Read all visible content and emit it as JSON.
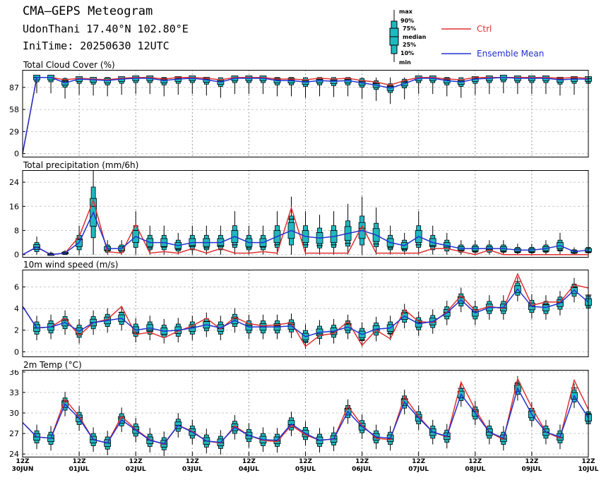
{
  "header": {
    "title": "CMA—GEPS Meteogram",
    "station": "UdonThani 17.40°N 102.80°E",
    "init_time": "IniTime: 20250630 12UTC"
  },
  "legend": {
    "box_labels": [
      "max",
      "90%",
      "75%",
      "median",
      "25%",
      "10%",
      "min"
    ],
    "ctrl": "Ctrl",
    "mean": "Ensemble Mean",
    "ctrl_color": "#e03030",
    "mean_color": "#2030d0",
    "box_color": "#20b8c0"
  },
  "x_axis": {
    "ticks": [
      {
        "t": 0,
        "hour": "12Z",
        "date": "30JUN"
      },
      {
        "t": 4,
        "hour": "12Z",
        "date": "01JUL"
      },
      {
        "t": 8,
        "hour": "12Z",
        "date": "02JUL"
      },
      {
        "t": 12,
        "hour": "12Z",
        "date": "03JUL"
      },
      {
        "t": 16,
        "hour": "12Z",
        "date": "04JUL"
      },
      {
        "t": 20,
        "hour": "12Z",
        "date": "05JUL"
      },
      {
        "t": 24,
        "hour": "12Z",
        "date": "06JUL"
      },
      {
        "t": 28,
        "hour": "12Z",
        "date": "07JUL"
      },
      {
        "t": 32,
        "hour": "12Z",
        "date": "08JUL"
      },
      {
        "t": 36,
        "hour": "12Z",
        "date": "09JUL"
      },
      {
        "t": 40,
        "hour": "12Z",
        "date": "10JUL"
      }
    ],
    "range": [
      0,
      40
    ]
  },
  "chart_data": [
    {
      "type": "box",
      "title": "Total Cloud Cover (%)",
      "ylim": [
        -5,
        110
      ],
      "yticks": [
        0,
        29,
        58,
        87
      ],
      "x": [
        0,
        1,
        2,
        3,
        4,
        5,
        6,
        7,
        8,
        9,
        10,
        11,
        12,
        13,
        14,
        15,
        16,
        17,
        18,
        19,
        20,
        21,
        22,
        23,
        24,
        25,
        26,
        27,
        28,
        29,
        30,
        31,
        32,
        33,
        34,
        35,
        36,
        37,
        38,
        39,
        40
      ],
      "ctrl": [
        0,
        100,
        100,
        97,
        99,
        98,
        97,
        99,
        100,
        100,
        98,
        100,
        100,
        99,
        97,
        100,
        100,
        100,
        98,
        98,
        97,
        99,
        98,
        99,
        96,
        94,
        90,
        96,
        100,
        100,
        98,
        97,
        100,
        100,
        100,
        100,
        100,
        100,
        99,
        100,
        99
      ],
      "mean": [
        0,
        100,
        100,
        93,
        98,
        97,
        96,
        98,
        99,
        99,
        96,
        98,
        99,
        97,
        94,
        99,
        99,
        99,
        96,
        96,
        94,
        96,
        95,
        96,
        93,
        90,
        86,
        92,
        99,
        99,
        96,
        94,
        98,
        99,
        100,
        99,
        99,
        99,
        97,
        98,
        98
      ]
    },
    {
      "type": "box",
      "title": "Total precipitation (mm/6h)",
      "ylim": [
        -1,
        28
      ],
      "yticks": [
        0,
        8,
        16,
        24
      ],
      "x": [
        0,
        1,
        2,
        3,
        4,
        5,
        6,
        7,
        8,
        9,
        10,
        11,
        12,
        13,
        14,
        15,
        16,
        17,
        18,
        19,
        20,
        21,
        22,
        23,
        24,
        25,
        26,
        27,
        28,
        29,
        30,
        31,
        32,
        33,
        34,
        35,
        36,
        37,
        38,
        39,
        40
      ],
      "ctrl": [
        0,
        2.5,
        0,
        0.5,
        6,
        18,
        1,
        0.5,
        10,
        0.5,
        1,
        0.5,
        2,
        0.5,
        2,
        0.5,
        0.5,
        1,
        0.5,
        15.5,
        0.5,
        0.5,
        0.5,
        0.5,
        9.5,
        0.5,
        0.5,
        0.5,
        0.5,
        2,
        2,
        1,
        0,
        1.5,
        0,
        0,
        0,
        0,
        0,
        0,
        0
      ],
      "mean": [
        0,
        2.5,
        0,
        0.5,
        4,
        14,
        2,
        2,
        6,
        4,
        4,
        3,
        4,
        4,
        4,
        6,
        4,
        4,
        6,
        8,
        6,
        5.5,
        6,
        7,
        8,
        6.5,
        4,
        3,
        6,
        4,
        3,
        2,
        2,
        2,
        2,
        1.5,
        1.5,
        2,
        3,
        1,
        1.5
      ]
    },
    {
      "type": "box",
      "title": "10m wind speed (m/s)",
      "ylim": [
        -0.5,
        7.6
      ],
      "yticks": [
        0,
        2,
        4,
        6
      ],
      "x": [
        0,
        1,
        2,
        3,
        4,
        5,
        6,
        7,
        8,
        9,
        10,
        11,
        12,
        13,
        14,
        15,
        16,
        17,
        18,
        19,
        20,
        21,
        22,
        23,
        24,
        25,
        26,
        27,
        28,
        29,
        30,
        31,
        32,
        33,
        34,
        35,
        36,
        37,
        38,
        39,
        40
      ],
      "ctrl": [
        4.2,
        2.2,
        2.3,
        3.1,
        1.5,
        2.7,
        3.0,
        4.2,
        1.6,
        1.8,
        1.3,
        1.9,
        2.4,
        3.1,
        2.1,
        3.2,
        2.6,
        2.4,
        2.5,
        2.7,
        0.5,
        1.5,
        1.7,
        2.8,
        0.6,
        2.0,
        1.2,
        3.9,
        2.8,
        2.7,
        3.7,
        5.2,
        3.8,
        4.2,
        4.0,
        7.2,
        4.3,
        4.6,
        4.6,
        6.2,
        5.9
      ],
      "mean": [
        4.2,
        2.2,
        2.3,
        2.7,
        1.9,
        2.7,
        2.9,
        3.1,
        2.0,
        2.2,
        1.9,
        2.0,
        2.2,
        2.5,
        2.2,
        2.9,
        2.3,
        2.3,
        2.3,
        2.4,
        1.4,
        1.8,
        1.9,
        2.3,
        1.6,
        2.1,
        2.2,
        3.3,
        2.6,
        2.8,
        3.6,
        4.8,
        3.6,
        4.1,
        4.1,
        5.8,
        4.2,
        4.1,
        4.5,
        5.7,
        4.6
      ]
    },
    {
      "type": "box",
      "title": "2m Temp (°C)",
      "ylim": [
        23.5,
        36.3
      ],
      "yticks": [
        24,
        27,
        30,
        33,
        36
      ],
      "x": [
        0,
        1,
        2,
        3,
        4,
        5,
        6,
        7,
        8,
        9,
        10,
        11,
        12,
        13,
        14,
        15,
        16,
        17,
        18,
        19,
        20,
        21,
        22,
        23,
        24,
        25,
        26,
        27,
        28,
        29,
        30,
        31,
        32,
        33,
        34,
        35,
        36,
        37,
        38,
        39,
        40
      ],
      "ctrl": [
        28.6,
        26.5,
        26.3,
        32.0,
        29.5,
        26.1,
        25.6,
        29.5,
        27.6,
        26.1,
        25.4,
        28.2,
        27.3,
        25.9,
        25.6,
        28.1,
        26.7,
        26.0,
        25.8,
        28.2,
        26.8,
        26.0,
        26.2,
        31.0,
        28.2,
        26.3,
        26.1,
        32.4,
        29.5,
        27.2,
        26.5,
        34.5,
        30.5,
        27.2,
        26.1,
        35.0,
        30.8,
        27.2,
        26.3,
        34.8,
        30.5
      ],
      "mean": [
        28.6,
        26.5,
        26.3,
        31.3,
        29.2,
        26.1,
        25.6,
        29.0,
        27.5,
        26.0,
        25.5,
        28.2,
        27.2,
        25.9,
        25.7,
        27.9,
        26.7,
        26.1,
        26.0,
        28.4,
        27.0,
        26.0,
        26.2,
        30.2,
        28.0,
        26.5,
        26.3,
        31.6,
        29.3,
        27.2,
        26.6,
        32.7,
        30.0,
        27.2,
        26.3,
        33.6,
        29.8,
        27.2,
        26.5,
        32.5,
        29.3
      ]
    }
  ]
}
